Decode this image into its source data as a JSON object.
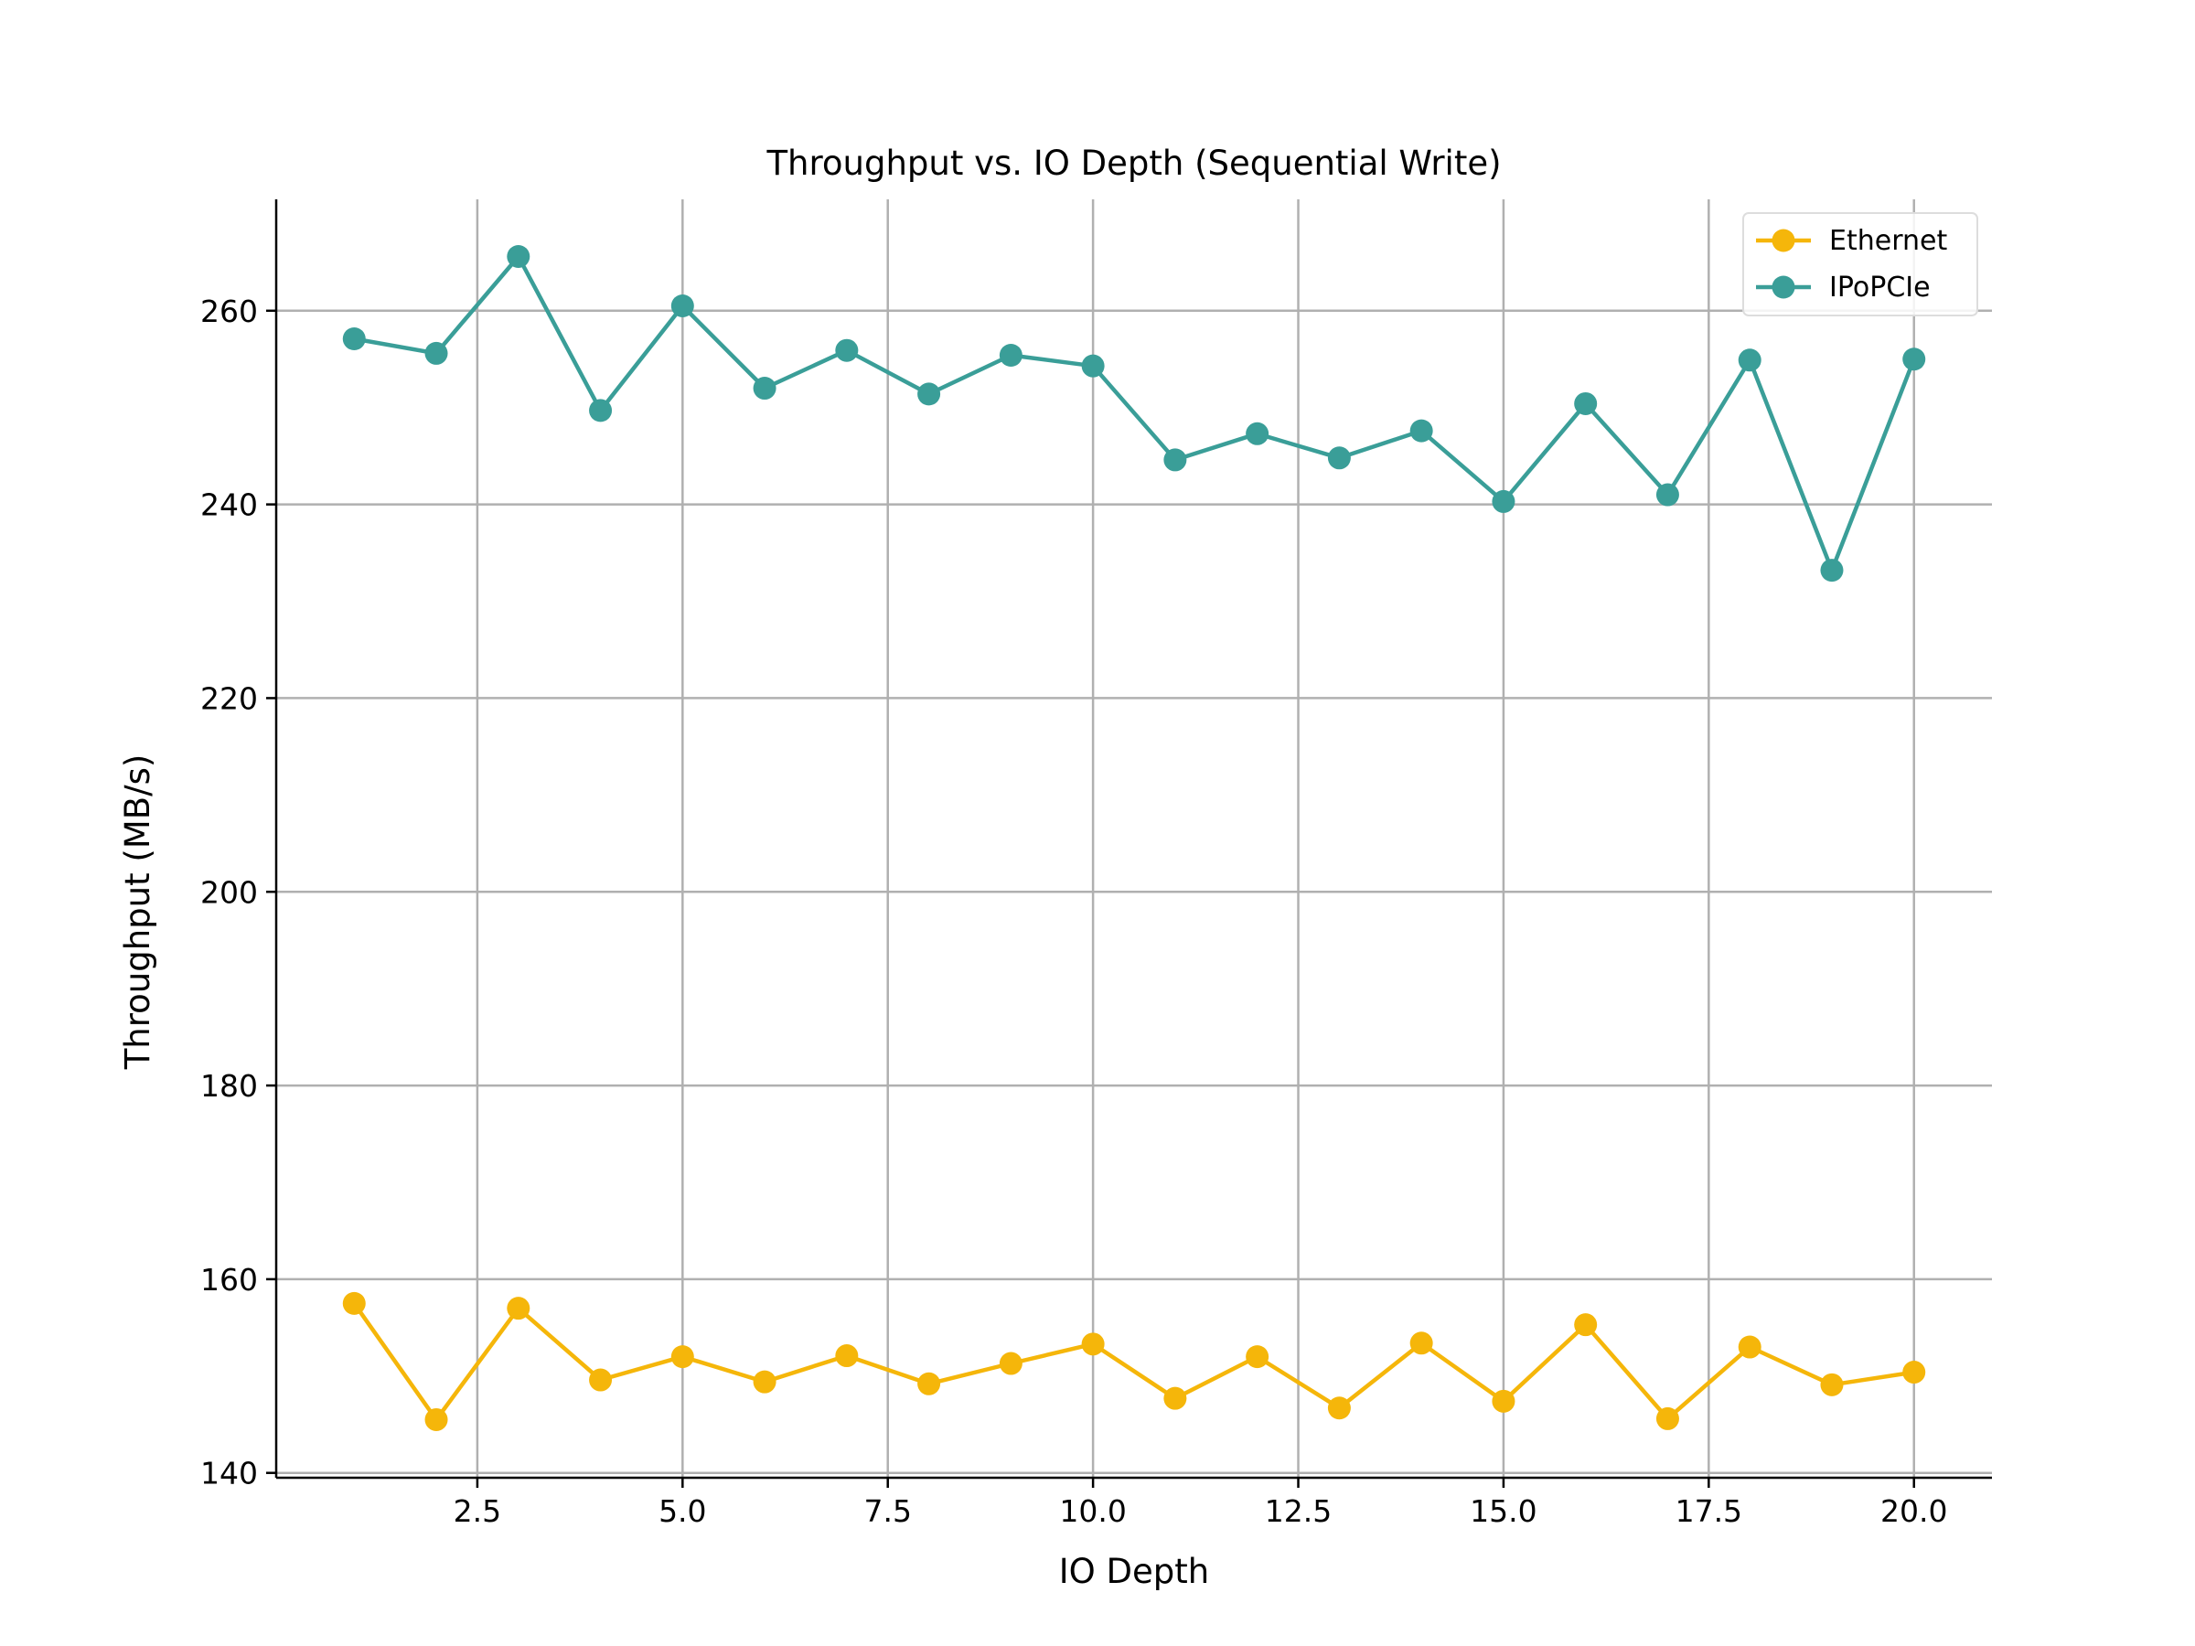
{
  "chart_data": {
    "type": "line",
    "title": "Throughput vs. IO Depth (Sequential Write)",
    "xlabel": "IO Depth",
    "ylabel": "Throughput (MB/s)",
    "xlim": [
      0.05,
      20.95
    ],
    "ylim": [
      139.5,
      271.5
    ],
    "x_ticks": [
      2.5,
      5.0,
      7.5,
      10.0,
      12.5,
      15.0,
      17.5,
      20.0
    ],
    "x_tick_labels": [
      "2.5",
      "5.0",
      "7.5",
      "10.0",
      "12.5",
      "15.0",
      "17.5",
      "20.0"
    ],
    "y_ticks": [
      140,
      160,
      180,
      200,
      220,
      240,
      260
    ],
    "y_tick_labels": [
      "140",
      "160",
      "180",
      "200",
      "220",
      "240",
      "260"
    ],
    "grid": true,
    "legend_position": "top-right",
    "x": [
      1,
      2,
      3,
      4,
      5,
      6,
      7,
      8,
      9,
      10,
      11,
      12,
      13,
      14,
      15,
      16,
      17,
      18,
      19,
      20
    ],
    "series": [
      {
        "name": "Ethernet",
        "color": "#F5B60A",
        "values": [
          157.5,
          145.5,
          157.0,
          149.6,
          152.0,
          149.4,
          152.1,
          149.2,
          151.3,
          153.3,
          147.7,
          152.0,
          146.7,
          153.4,
          147.4,
          155.3,
          145.6,
          153.0,
          149.1,
          150.4
        ]
      },
      {
        "name": "IPoPCIe",
        "color": "#3A9E98",
        "values": [
          257.1,
          255.6,
          265.6,
          249.7,
          260.5,
          252.0,
          255.9,
          251.4,
          255.4,
          254.3,
          244.6,
          247.3,
          244.8,
          247.6,
          240.3,
          250.4,
          241.0,
          254.9,
          233.2,
          255.0
        ]
      }
    ]
  }
}
